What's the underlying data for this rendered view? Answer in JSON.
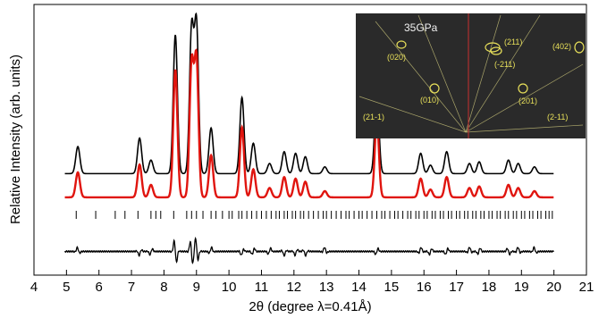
{
  "chart_data": {
    "type": "line",
    "title": "",
    "xlabel": "2θ (degree λ=0.41Å)",
    "ylabel": "Relative Intensity (arb. units)",
    "xlim": [
      4,
      21
    ],
    "xticks": [
      4,
      5,
      6,
      7,
      8,
      9,
      10,
      11,
      12,
      13,
      14,
      15,
      16,
      17,
      18,
      19,
      20,
      21
    ],
    "ylim": [
      -0.6,
      1.0
    ],
    "y_ticks_shown": false,
    "grid": false,
    "legend": "none",
    "colors": {
      "observed": "#000000",
      "calculated": "#e0150f",
      "difference": "#000000",
      "reflections": "#000000"
    },
    "peaks": [
      {
        "x": 5.35,
        "h": 0.16
      },
      {
        "x": 7.25,
        "h": 0.21
      },
      {
        "x": 7.6,
        "h": 0.08
      },
      {
        "x": 8.35,
        "h": 0.82
      },
      {
        "x": 8.85,
        "h": 0.85
      },
      {
        "x": 9.0,
        "h": 0.88
      },
      {
        "x": 9.45,
        "h": 0.27
      },
      {
        "x": 10.4,
        "h": 0.45
      },
      {
        "x": 10.75,
        "h": 0.18
      },
      {
        "x": 11.25,
        "h": 0.06
      },
      {
        "x": 11.7,
        "h": 0.13
      },
      {
        "x": 12.05,
        "h": 0.12
      },
      {
        "x": 12.35,
        "h": 0.1
      },
      {
        "x": 12.95,
        "h": 0.04
      },
      {
        "x": 14.55,
        "h": 0.5
      },
      {
        "x": 15.9,
        "h": 0.12
      },
      {
        "x": 16.2,
        "h": 0.05
      },
      {
        "x": 16.7,
        "h": 0.13
      },
      {
        "x": 17.4,
        "h": 0.06
      },
      {
        "x": 17.7,
        "h": 0.07
      },
      {
        "x": 18.6,
        "h": 0.08
      },
      {
        "x": 18.9,
        "h": 0.06
      },
      {
        "x": 19.4,
        "h": 0.04
      }
    ],
    "series": [
      {
        "x_range": [
          4.95,
          20.0
        ],
        "offset": 0.0
      },
      {
        "x_range": [
          4.95,
          20.0
        ],
        "offset": -0.14
      },
      {
        "x_range": [
          4.95,
          20.0
        ],
        "offset": -0.46
      }
    ],
    "reflection_ticks_x": [
      5.3,
      5.9,
      6.5,
      6.8,
      7.2,
      7.6,
      7.75,
      7.9,
      8.3,
      8.7,
      8.85,
      9.0,
      9.2,
      9.45,
      9.6,
      9.8,
      10.0,
      10.1,
      10.3,
      10.4,
      10.55,
      10.7,
      10.85,
      11.0,
      11.15,
      11.3,
      11.45,
      11.55,
      11.7,
      11.8,
      11.95,
      12.05,
      12.2,
      12.3,
      12.45,
      12.6,
      12.75,
      12.9,
      13.0,
      13.15,
      13.3,
      13.45,
      13.6,
      13.7,
      13.85,
      14.0,
      14.1,
      14.25,
      14.4,
      14.55,
      14.7,
      14.8,
      14.95,
      15.1,
      15.2,
      15.35,
      15.5,
      15.6,
      15.75,
      15.85,
      16.0,
      16.1,
      16.25,
      16.35,
      16.5,
      16.6,
      16.75,
      16.85,
      17.0,
      17.1,
      17.25,
      17.35,
      17.5,
      17.6,
      17.75,
      17.85,
      18.0,
      18.1,
      18.25,
      18.35,
      18.5,
      18.6,
      18.75,
      18.85,
      19.0,
      19.1,
      19.25,
      19.35,
      19.5,
      19.6,
      19.75,
      19.85,
      19.95
    ],
    "inset": {
      "title": "35GPa",
      "spots": [
        {
          "label": "(020)"
        },
        {
          "label": "(010)"
        },
        {
          "label": "(211)"
        },
        {
          "label": "(-211)"
        },
        {
          "label": "(201)"
        },
        {
          "label": "(402)"
        },
        {
          "label": "(21-1)"
        },
        {
          "label": "(2-11)"
        }
      ]
    }
  }
}
